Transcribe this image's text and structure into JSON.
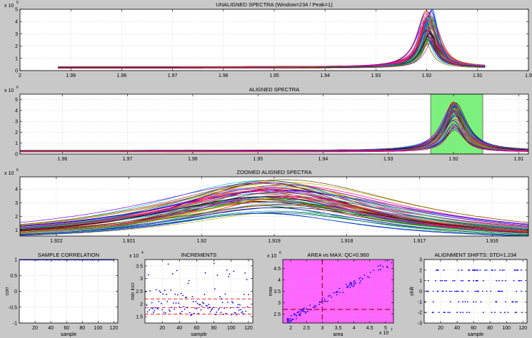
{
  "figure": {
    "background": "#c8c8c8",
    "axes_background": "#ffffff",
    "grid": true,
    "grid_color": "#b4b4b4"
  },
  "chart_data": [
    {
      "id": "unaligned",
      "type": "line",
      "title": "UNALIGNED SPECTRA (Window=234 / Peak=1)",
      "xlabel": "",
      "ylabel": "",
      "x_reversed": true,
      "xlim": [
        1.9,
        2.0
      ],
      "ylim": [
        0,
        5
      ],
      "xticks": [
        2,
        1.99,
        1.98,
        1.97,
        1.96,
        1.95,
        1.94,
        1.93,
        1.92,
        1.91,
        1.9
      ],
      "xtick_labels": [
        "2",
        "1.99",
        "1.98",
        "1.97",
        "1.96",
        "1.95",
        "1.94",
        "1.93",
        "1.92",
        "1.91",
        "1.9"
      ],
      "yticks": [
        0,
        1,
        2,
        3,
        4,
        5
      ],
      "ytick_labels": [
        "0",
        "1",
        "2",
        "3",
        "4",
        "5"
      ],
      "y_exponent": "x 10",
      "y_exponent_power": "6",
      "x_data_range": [
        1.9085,
        1.9925
      ],
      "baseline": [
        0.18,
        0.34
      ],
      "peak_center": [
        1.9188,
        1.9205
      ],
      "peak_height": [
        2.2,
        5.0
      ],
      "peak_width": 0.0018,
      "n_series": 60
    },
    {
      "id": "aligned",
      "type": "line",
      "title": "ALIGNED SPECTRA",
      "xlabel": "",
      "ylabel": "",
      "x_reversed": true,
      "xlim": [
        1.9085,
        1.9865
      ],
      "ylim": [
        0,
        5.5
      ],
      "xticks": [
        1.98,
        1.97,
        1.96,
        1.95,
        1.94,
        1.93,
        1.92,
        1.91
      ],
      "xtick_labels": [
        "1.98",
        "1.97",
        "1.96",
        "1.95",
        "1.94",
        "1.93",
        "1.92",
        "1.91"
      ],
      "yticks": [
        0,
        1,
        2,
        3,
        4,
        5
      ],
      "ytick_labels": [
        "0",
        "1",
        "2",
        "3",
        "4",
        "5"
      ],
      "y_exponent": "x 10",
      "y_exponent_power": "6",
      "baseline": [
        0.18,
        0.34
      ],
      "peak_center": [
        1.9197,
        1.9201
      ],
      "peak_height": [
        2.2,
        4.8
      ],
      "peak_width": 0.0018,
      "n_series": 60,
      "highlight_range": [
        1.9155,
        1.9235
      ],
      "highlight_color": "#7cf07c"
    },
    {
      "id": "zoomed",
      "type": "line",
      "title": "ZOOMED ALIGNED SPECTRA",
      "xlabel": "",
      "ylabel": "",
      "x_reversed": true,
      "xlim": [
        1.9155,
        1.9225
      ],
      "ylim": [
        0.55,
        4.9
      ],
      "xticks": [
        1.922,
        1.921,
        1.92,
        1.919,
        1.918,
        1.917,
        1.916
      ],
      "xtick_labels": [
        "1.922",
        "1.921",
        "1.92",
        "1.919",
        "1.918",
        "1.917",
        "1.916"
      ],
      "yticks": [
        1,
        2,
        3,
        4
      ],
      "ytick_labels": [
        "1",
        "2",
        "3",
        "4"
      ],
      "y_exponent": "x 10",
      "y_exponent_power": "6",
      "baseline": [
        0.18,
        0.34
      ],
      "peak_center": [
        1.9188,
        1.9193
      ],
      "peak_height": [
        2.2,
        4.8
      ],
      "peak_width": 0.0018,
      "n_series": 60
    },
    {
      "id": "correlation",
      "type": "scatter",
      "title": "SAMPLE CORRELATION",
      "xlabel": "sample",
      "ylabel": "corr",
      "xlim": [
        0,
        125
      ],
      "ylim": [
        -1,
        1
      ],
      "xticks": [
        20,
        40,
        60,
        80,
        100,
        120
      ],
      "xtick_labels": [
        "20",
        "40",
        "60",
        "80",
        "100",
        "120"
      ],
      "yticks": [
        -1,
        -0.5,
        0,
        0.5,
        1
      ],
      "ytick_labels": [
        "-1",
        "-0.5",
        "0",
        "0.5",
        "1"
      ],
      "x_range": [
        1,
        120
      ],
      "y_range": [
        0.99,
        1.0
      ],
      "marker_color": "#0000ff",
      "line_color": "#ff0000",
      "line_y": 1
    },
    {
      "id": "increments",
      "type": "scatter",
      "title": "INCREMENTS",
      "xlabel": "sample",
      "ylabel": "min incr",
      "xlim": [
        0,
        125
      ],
      "ylim": [
        1.25,
        3.75
      ],
      "xticks": [
        20,
        40,
        60,
        80,
        100,
        120
      ],
      "xtick_labels": [
        "20",
        "40",
        "60",
        "80",
        "100",
        "120"
      ],
      "yticks": [
        1.5,
        2,
        2.5,
        3,
        3.5
      ],
      "ytick_labels": [
        "1.5",
        "2",
        "2.5",
        "3",
        "3.5"
      ],
      "y_exponent": "x 10",
      "y_exponent_power": "4",
      "x_range": [
        1,
        120
      ],
      "y_range": [
        1.55,
        3.6
      ],
      "marker_color": "#0000ff",
      "threshold_lines": [
        2.2,
        1.85,
        1.6
      ],
      "threshold_color": "#ff0000"
    },
    {
      "id": "area_vs_max",
      "type": "scatter",
      "title": "AREA vs MAX: QC=0.960",
      "xlabel": "area",
      "ylabel": "max",
      "xlim": [
        1.75,
        5.25
      ],
      "ylim": [
        2.1,
        4.9
      ],
      "xticks": [
        2,
        2.5,
        3,
        3.5,
        4,
        4.5,
        5
      ],
      "xtick_labels": [
        "2",
        "2.5",
        "3",
        "3.5",
        "4",
        "4.5",
        "5"
      ],
      "yticks": [
        2.5,
        3,
        3.5,
        4,
        4.5
      ],
      "ytick_labels": [
        "2.5",
        "3",
        "3.5",
        "4",
        "4.5"
      ],
      "x_exponent": "x 10",
      "x_exponent_power": "7",
      "y_exponent": "x 10",
      "y_exponent_power": "6",
      "background": "#ff66ff",
      "marker_color": "#0000ff",
      "line_color": "#b01030",
      "vline_x": 3.0,
      "hline_y": 2.7,
      "area_range": [
        1.9,
        5.2
      ],
      "max_range": [
        2.2,
        4.8
      ]
    },
    {
      "id": "shifts",
      "type": "scatter",
      "title": "ALIGNMENT SHIFTS: STD=1.234",
      "xlabel": "sample",
      "ylabel": "shift",
      "xlim": [
        0,
        125
      ],
      "ylim": [
        -3,
        3
      ],
      "xticks": [
        20,
        40,
        60,
        80,
        100,
        120
      ],
      "xtick_labels": [
        "20",
        "40",
        "60",
        "80",
        "100",
        "120"
      ],
      "yticks": [
        -3,
        -2,
        -1,
        0,
        1,
        2,
        3
      ],
      "ytick_labels": [
        "-3",
        "-2",
        "-1",
        "0",
        "1",
        "2",
        "3"
      ],
      "x_range": [
        1,
        120
      ],
      "shift_levels": [
        -2,
        -1,
        0,
        1,
        2
      ],
      "marker_color": "#0000ff"
    }
  ]
}
